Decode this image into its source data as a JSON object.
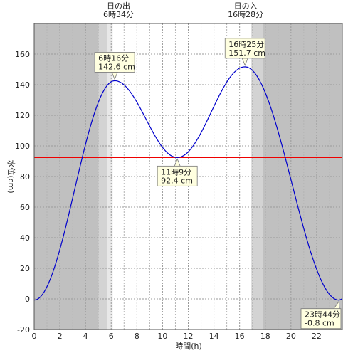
{
  "chart_data": {
    "type": "line",
    "xlabel": "時間(h)",
    "ylabel": "水位(cm)",
    "xlim": [
      0,
      24
    ],
    "ylim": [
      -20,
      180
    ],
    "xticks": [
      0,
      2,
      4,
      6,
      8,
      10,
      12,
      14,
      16,
      18,
      20,
      22
    ],
    "yticks": [
      -20,
      0,
      20,
      40,
      60,
      80,
      100,
      120,
      140,
      160
    ],
    "reference_line": {
      "value": 92.4,
      "color": "#ee0000"
    },
    "series": [
      {
        "color": "#0000cc",
        "points": [
          [
            0.0,
            -0.8
          ],
          [
            6.27,
            142.6
          ],
          [
            11.15,
            92.4
          ],
          [
            16.42,
            151.7
          ],
          [
            23.73,
            -0.8
          ],
          [
            24.0,
            0.0
          ]
        ]
      }
    ],
    "sun": {
      "sunrise": {
        "title": "日の出",
        "time_label": "6時34分",
        "hour": 6.57
      },
      "sunset": {
        "title": "日の入",
        "time_label": "16時28分",
        "hour": 16.47
      }
    },
    "annotations": [
      {
        "time": "6時16分",
        "level": "142.6 cm",
        "x": 6.27,
        "y": 142.6,
        "placement": "above"
      },
      {
        "time": "11時9分",
        "level": "92.4 cm",
        "x": 11.15,
        "y": 92.4,
        "placement": "below"
      },
      {
        "time": "16時25分",
        "level": "151.7 cm",
        "x": 16.42,
        "y": 151.7,
        "placement": "above"
      },
      {
        "time": "23時44分",
        "level": "-0.8 cm",
        "x": 23.73,
        "y": -0.8,
        "placement": "below"
      }
    ],
    "colors": {
      "night": "#c0c0c0",
      "twilight_outer": "#d3d3d3",
      "twilight_inner": "#e8e8e8",
      "day": "#ffffff",
      "annotation_fill": "#ffffe0"
    }
  }
}
